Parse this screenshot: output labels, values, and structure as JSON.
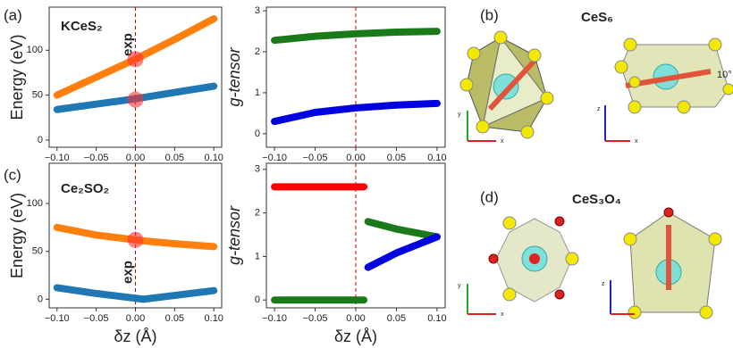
{
  "chart_data": [
    {
      "type": "line",
      "panel_label": "(a)",
      "compound": "KCeS₂",
      "ylabel": "Energy (eV)",
      "x": [
        -0.1,
        -0.05,
        0,
        0.05,
        0.1
      ],
      "xlim": [
        -0.11,
        0.11
      ],
      "xticks": [
        {
          "value": -0.1,
          "label": "−0.10"
        },
        {
          "value": -0.05,
          "label": "−0.05"
        },
        {
          "value": 0,
          "label": "0.00"
        },
        0.05,
        {
          "value": 0.1,
          "label": "0.10"
        }
      ],
      "ylim": [
        -8,
        148
      ],
      "yticks": [
        0,
        50,
        100
      ],
      "series": [
        {
          "color": "#ff7f0e",
          "values": [
            50,
            70,
            90,
            112,
            135
          ]
        },
        {
          "color": "#1f77b4",
          "values": [
            34,
            40,
            46,
            53,
            60
          ]
        }
      ],
      "reference": {
        "x": 0,
        "label": "exp",
        "color": "#cc0000"
      },
      "highlight_values": [
        90,
        45
      ],
      "highlight_color": "#ff3030"
    },
    {
      "type": "line",
      "ylabel": "g-tensor",
      "x": [
        -0.1,
        -0.05,
        0,
        0.05,
        0.1
      ],
      "xlim": [
        -0.11,
        0.11
      ],
      "xticks": [
        {
          "value": -0.1,
          "label": "−0.10"
        },
        {
          "value": -0.05,
          "label": "−0.05"
        },
        {
          "value": 0,
          "label": "0.00"
        },
        0.05,
        {
          "value": 0.1,
          "label": "0.10"
        }
      ],
      "ylim": [
        -0.33,
        3.09
      ],
      "yticks": [
        0,
        1,
        2,
        3
      ],
      "series": [
        {
          "color": "#1a7a1a",
          "values": [
            2.28,
            2.38,
            2.44,
            2.48,
            2.5
          ]
        },
        {
          "color": "#0000e0",
          "values": [
            0.3,
            0.52,
            0.63,
            0.7,
            0.74
          ]
        }
      ],
      "reference": {
        "x": 0,
        "color": "#cc0000"
      }
    },
    {
      "type": "line",
      "panel_label": "(c)",
      "compound": "Ce₂SO₂",
      "ylabel": "Energy (eV)",
      "xlabel": "δz (Å)",
      "x": [
        -0.1,
        -0.05,
        0,
        0.01,
        0.05,
        0.1
      ],
      "xlim": [
        -0.11,
        0.11
      ],
      "xticks": [
        {
          "value": -0.1,
          "label": "−0.10"
        },
        {
          "value": -0.05,
          "label": "−0.05"
        },
        {
          "value": 0,
          "label": "0.00"
        },
        0.05,
        {
          "value": 0.1,
          "label": "0.10"
        }
      ],
      "ylim": [
        -9,
        142
      ],
      "yticks": [
        0,
        50,
        100
      ],
      "series": [
        {
          "color": "#ff7f0e",
          "values": [
            75,
            67,
            62,
            61,
            58,
            55
          ]
        },
        {
          "color": "#1f77b4",
          "values": [
            12,
            6,
            1,
            0,
            4,
            9
          ]
        }
      ],
      "reference": {
        "x": 0,
        "label": "exp",
        "color": "#cc0000"
      },
      "highlight_values": [
        62
      ],
      "highlight_color": "#ff3030"
    },
    {
      "type": "line",
      "ylabel": "g-tensor",
      "xlabel": "δz (Å)",
      "x": [
        -0.1,
        -0.05,
        0,
        0.01,
        0.012,
        0.015,
        0.05,
        0.1
      ],
      "xlim": [
        -0.11,
        0.11
      ],
      "xticks": [
        {
          "value": -0.1,
          "label": "−0.10"
        },
        {
          "value": -0.05,
          "label": "−0.05"
        },
        {
          "value": 0,
          "label": "0.00"
        },
        0.05,
        {
          "value": 0.1,
          "label": "0.10"
        }
      ],
      "ylim": [
        -0.18,
        3.14
      ],
      "yticks": [
        0,
        1,
        2,
        3
      ],
      "series": [
        {
          "color": "#ff0000",
          "values": [
            2.6,
            2.6,
            2.6,
            2.6,
            null,
            null,
            null,
            null
          ]
        },
        {
          "color": "#1a7a1a",
          "values": [
            0,
            0,
            0,
            0,
            null,
            1.8,
            1.63,
            1.45
          ]
        },
        {
          "color": "#0000e0",
          "values": [
            null,
            null,
            null,
            null,
            null,
            0.75,
            1.08,
            1.45
          ]
        }
      ],
      "reference": {
        "x": 0,
        "color": "#cc0000"
      }
    }
  ],
  "structures": {
    "b": {
      "label": "(b)",
      "title": "CeS₆",
      "angle": "10°"
    },
    "d": {
      "label": "(d)",
      "title": "CeS₃O₄"
    },
    "axes": {
      "x": "x",
      "y": "y",
      "z": "z"
    }
  }
}
